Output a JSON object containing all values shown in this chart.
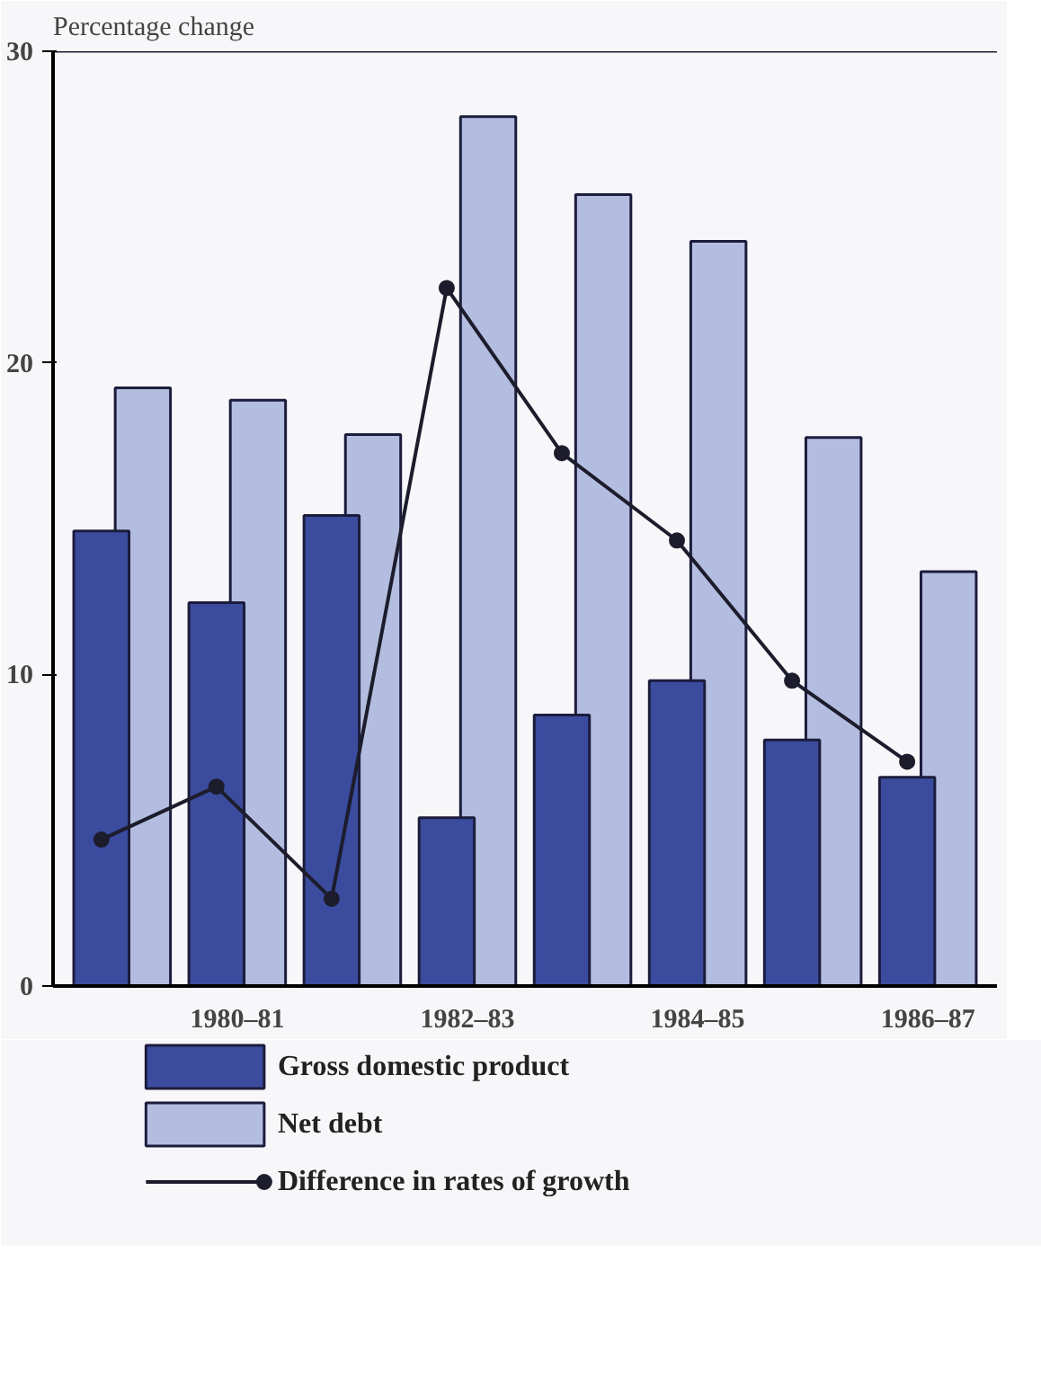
{
  "chart_data": {
    "type": "bar",
    "ylabel": "Percentage change",
    "categories": [
      null,
      "1980–81",
      null,
      "1982–83",
      null,
      "1984–85",
      null,
      "1986–87"
    ],
    "series": [
      {
        "name": "Gross domestic product",
        "color": "#3b4c9e",
        "values": [
          14.6,
          12.3,
          15.1,
          5.4,
          8.7,
          9.8,
          7.9,
          6.7
        ]
      },
      {
        "name": "Net debt",
        "color": "#b3bddf",
        "values": [
          19.2,
          18.8,
          17.7,
          27.9,
          25.4,
          23.9,
          17.6,
          13.3
        ]
      },
      {
        "name": "Difference in rates of growth",
        "type": "line",
        "color": "#1c1c2c",
        "marker": "circle",
        "values": [
          4.7,
          6.4,
          2.8,
          22.4,
          17.1,
          14.3,
          9.8,
          7.2
        ]
      }
    ],
    "ylim": [
      0,
      30
    ],
    "yticks": [
      0,
      10,
      20,
      30
    ],
    "grid": false,
    "legend": "bottom"
  }
}
